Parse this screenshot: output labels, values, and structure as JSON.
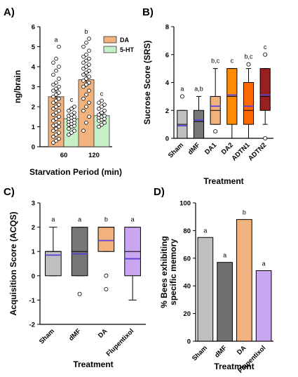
{
  "chart_data": [
    {
      "id": "A",
      "panel_label": "A)",
      "type": "bar",
      "ylabel": "ng/brain",
      "xlabel": "Starvation Period (min)",
      "ylim": [
        0,
        6
      ],
      "yticks": [
        "0",
        "1",
        "2",
        "3",
        "4",
        "5",
        "6"
      ],
      "categories": [
        "60",
        "120"
      ],
      "legend": {
        "position": "top-right"
      },
      "series": [
        {
          "name": "DA",
          "color": "#f2b27d",
          "values": [
            2.5,
            3.35
          ],
          "errors": [
            0.35,
            0.35
          ],
          "letters": [
            "a",
            "b"
          ],
          "points": [
            [
              0.2,
              0.3,
              0.4,
              0.5,
              0.6,
              0.7,
              0.8,
              0.9,
              1.0,
              1.05,
              1.1,
              1.2,
              1.3,
              1.4,
              1.5,
              1.6,
              1.7,
              1.8,
              1.9,
              2.0,
              2.1,
              2.2,
              2.3,
              2.4,
              2.5,
              2.6,
              2.7,
              2.8,
              2.9,
              3.0,
              3.1,
              3.2,
              3.4,
              3.6,
              3.8,
              4.0,
              4.2,
              4.4,
              5.0
            ],
            [
              0.8,
              1.2,
              1.5,
              1.8,
              2.0,
              2.2,
              2.4,
              2.6,
              2.8,
              3.0,
              3.1,
              3.2,
              3.3,
              3.4,
              3.5,
              3.6,
              3.7,
              3.8,
              3.9,
              4.0,
              4.1,
              4.2,
              4.3,
              4.4,
              4.5,
              4.6,
              4.8,
              5.0,
              5.2,
              5.4
            ]
          ]
        },
        {
          "name": "5-HT",
          "color": "#c8f0c8",
          "values": [
            1.4,
            1.55
          ],
          "errors": [
            0.15,
            0.15
          ],
          "letters": [
            "c",
            "c"
          ],
          "points": [
            [
              0.6,
              0.7,
              0.8,
              0.9,
              1.0,
              1.05,
              1.1,
              1.15,
              1.2,
              1.25,
              1.3,
              1.35,
              1.4,
              1.45,
              1.5,
              1.55,
              1.6,
              1.7,
              1.8,
              1.9,
              2.0
            ],
            [
              1.0,
              1.1,
              1.2,
              1.3,
              1.35,
              1.4,
              1.45,
              1.5,
              1.55,
              1.6,
              1.7,
              1.8,
              1.9,
              2.0,
              2.1,
              2.2,
              2.3
            ]
          ]
        }
      ]
    },
    {
      "id": "B",
      "panel_label": "B)",
      "type": "box",
      "ylabel": "Sucrose Score (SRS)",
      "xlabel": "Treatment",
      "ylim": [
        0,
        8
      ],
      "yticks": [
        "0",
        "2",
        "4",
        "6",
        "8"
      ],
      "categories": [
        "Sham",
        "dMF",
        "DA1",
        "DA2",
        "ADTN1",
        "ADTN2"
      ],
      "boxes": [
        {
          "color": "#bfbfbf",
          "min": 0,
          "q1": 0,
          "median": 1,
          "mean": 0.9,
          "q3": 2,
          "max": 2,
          "outliers": [
            3
          ],
          "letter": "a"
        },
        {
          "color": "#777777",
          "min": 0,
          "q1": 0,
          "median": 1.2,
          "mean": 1.3,
          "q3": 2,
          "max": 3,
          "outliers": [],
          "letter": "a,b"
        },
        {
          "color": "#f2b27d",
          "min": 1,
          "q1": 1,
          "median": 2,
          "mean": 2.3,
          "q3": 3,
          "max": 5,
          "outliers": [
            0.5
          ],
          "letter": "b,c"
        },
        {
          "color": "#ff8c00",
          "min": 0,
          "q1": 1,
          "median": 3,
          "mean": 3.1,
          "q3": 5,
          "max": 5,
          "outliers": [],
          "letter": "c"
        },
        {
          "color": "#ff6a00",
          "min": 0,
          "q1": 1,
          "median": 2,
          "mean": 2.3,
          "q3": 4,
          "max": 5,
          "outliers": [
            5.3
          ],
          "letter": "b,c"
        },
        {
          "color": "#9a1f1f",
          "min": 1,
          "q1": 2,
          "median": 3,
          "mean": 3.1,
          "q3": 5,
          "max": 5,
          "outliers": [
            6,
            0
          ],
          "letter": "c"
        }
      ]
    },
    {
      "id": "C",
      "panel_label": "C)",
      "type": "box",
      "ylabel": "Acquisition Score (ACQS)",
      "xlabel": "Treatment",
      "ylim": [
        -2,
        3
      ],
      "yticks": [
        "-2",
        "-1",
        "0",
        "1",
        "2",
        "3"
      ],
      "categories": [
        "Sham",
        "dMF",
        "DA",
        "Flupentixol"
      ],
      "boxes": [
        {
          "color": "#bfbfbf",
          "min": 0,
          "q1": 0,
          "median": 1,
          "mean": 0.85,
          "q3": 1,
          "max": 2,
          "outliers": [],
          "letter": "a"
        },
        {
          "color": "#777777",
          "min": 0,
          "q1": 0,
          "median": 1,
          "mean": 0.9,
          "q3": 2,
          "max": 2,
          "outliers": [
            -0.75
          ],
          "letter": "a"
        },
        {
          "color": "#f2b27d",
          "min": 1,
          "q1": 1,
          "median": 2,
          "mean": 1.45,
          "q3": 2,
          "max": 2,
          "outliers": [
            0,
            -0.55
          ],
          "letter": "b"
        },
        {
          "color": "#c9a6f0",
          "min": -1,
          "q1": 0,
          "median": 1,
          "mean": 0.7,
          "q3": 2,
          "max": 2,
          "outliers": [],
          "letter": "a"
        }
      ]
    },
    {
      "id": "D",
      "panel_label": "D)",
      "type": "bar",
      "ylabel": "% Bees exhibiting specific memory",
      "ylabel_lines": [
        "% Bees exhibiting",
        "specific memory"
      ],
      "xlabel": "Treatment",
      "ylim": [
        0,
        100
      ],
      "yticks": [
        "0",
        "20",
        "40",
        "60",
        "80",
        "100"
      ],
      "categories": [
        "Sham",
        "dMF",
        "DA",
        "Flupentixol"
      ],
      "values": [
        75,
        57,
        88,
        51
      ],
      "colors": [
        "#bfbfbf",
        "#6f6f6f",
        "#f2b27d",
        "#c9a6f0"
      ],
      "letters": [
        "a",
        "a",
        "b",
        "a"
      ]
    }
  ]
}
